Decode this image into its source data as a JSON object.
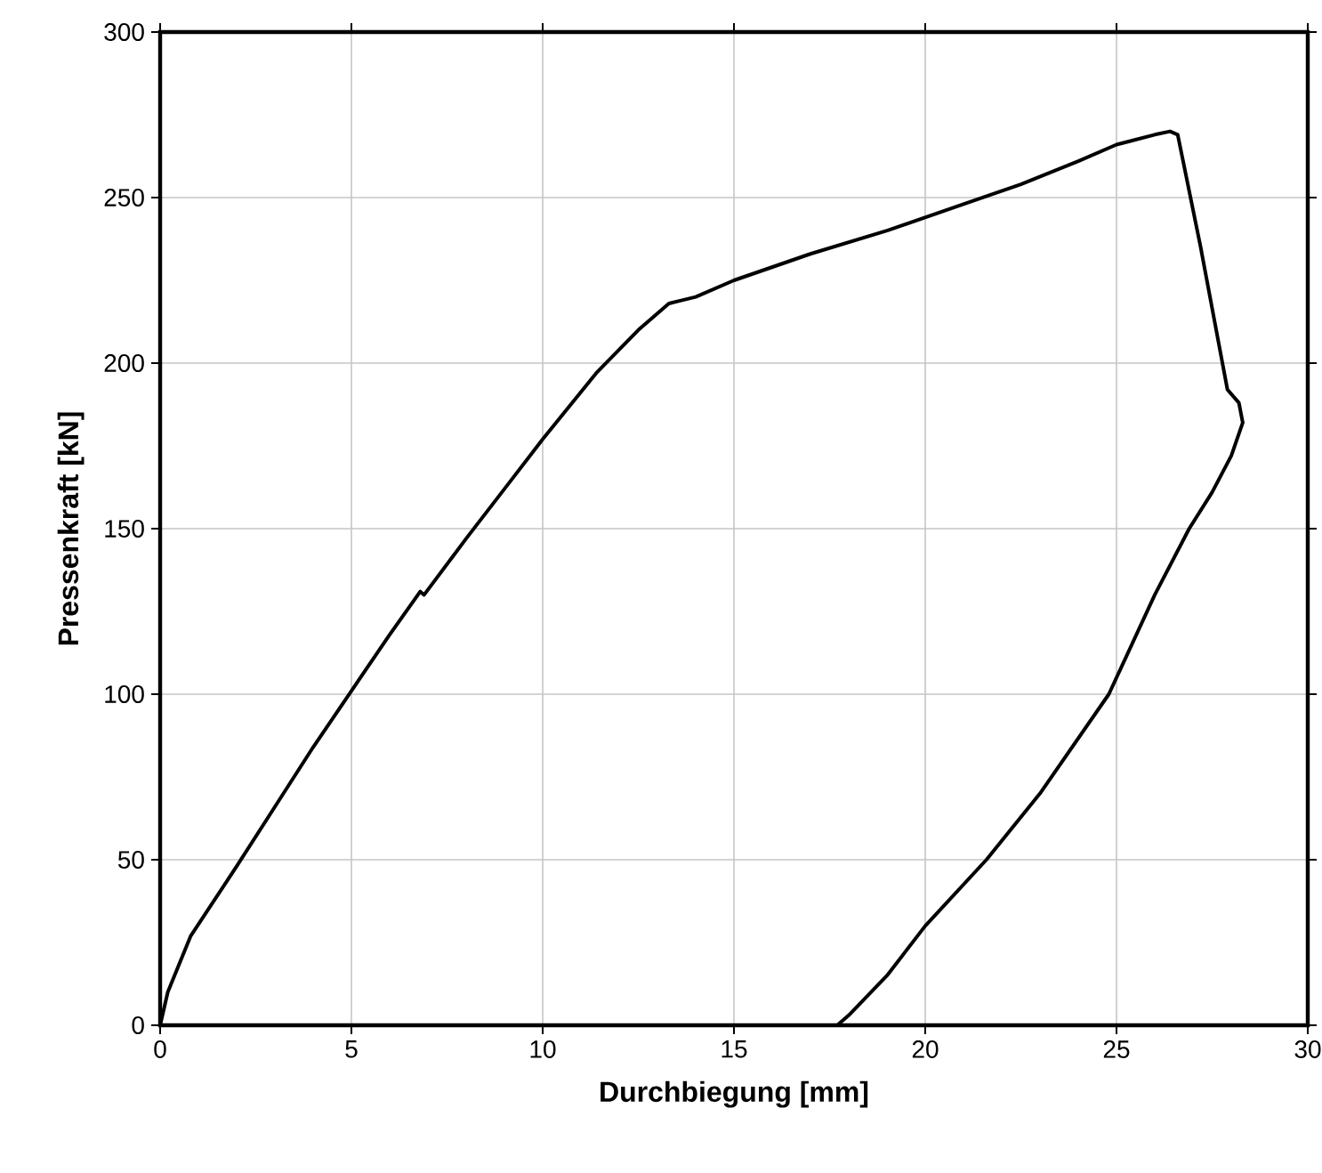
{
  "chart_data": {
    "type": "line",
    "xlabel": "Durchbiegung [mm]",
    "ylabel": "Pressenkraft [kN]",
    "xlim": [
      0,
      30
    ],
    "ylim": [
      0,
      300
    ],
    "xticks": [
      0,
      5,
      10,
      15,
      20,
      25,
      30
    ],
    "yticks": [
      0,
      50,
      100,
      150,
      200,
      250,
      300
    ],
    "grid": true,
    "marker": "none",
    "line_style": "solid",
    "series": [
      {
        "color": "#000000",
        "x": [
          0,
          0.2,
          0.8,
          2,
          3,
          4,
          5,
          6,
          6.8,
          6.9,
          8,
          9,
          10,
          11.4,
          12.5,
          13.3,
          14,
          15,
          17,
          19,
          21,
          22.5,
          24,
          25,
          26,
          26.4,
          26.6,
          27.2,
          27.9,
          28.2,
          28.3,
          28.0,
          27.5,
          26.9,
          26,
          24.8,
          23,
          21.6,
          20,
          19,
          18,
          17.7
        ],
        "values": [
          0,
          10,
          27,
          48,
          66,
          84,
          101,
          118,
          131,
          130,
          147,
          162,
          177,
          197,
          210,
          218,
          220,
          225,
          233,
          240,
          248,
          254,
          261,
          266,
          269,
          270,
          269,
          235,
          192,
          188,
          182,
          172,
          161,
          150,
          130,
          100,
          70,
          50,
          30,
          15,
          3,
          0
        ]
      }
    ]
  }
}
